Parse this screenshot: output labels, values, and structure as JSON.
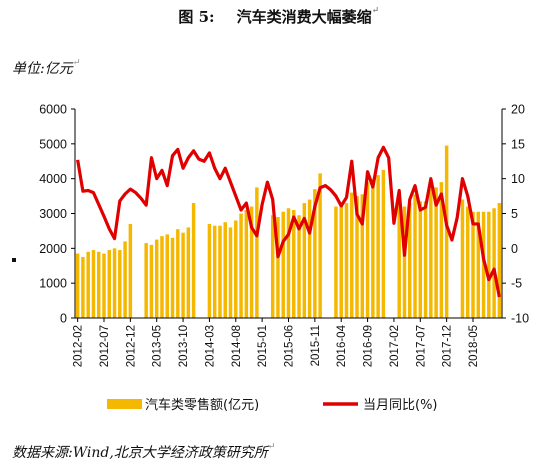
{
  "header": {
    "fig_no": "图 5:",
    "title": "汽车类消费大幅萎缩"
  },
  "unit_label": "单位:亿元",
  "source": "数据来源:Wind,北京大学经济政策研究所",
  "colors": {
    "bar": "#F5B800",
    "line": "#E00000",
    "axis": "#000000"
  },
  "chart_data": {
    "type": "bar",
    "title": "汽车类消费大幅萎缩",
    "y_left": {
      "min": 0,
      "max": 6000,
      "ticks": [
        "0",
        "1000",
        "2000",
        "3000",
        "4000",
        "5000",
        "6000"
      ]
    },
    "y_right": {
      "min": -10,
      "max": 20,
      "ticks": [
        "-10",
        "-5",
        "0",
        "5",
        "10",
        "15",
        "20"
      ]
    },
    "x_tick_labels": [
      "2012-02",
      "2012-07",
      "2012-12",
      "2013-05",
      "2013-10",
      "2014-03",
      "2014-08",
      "2015-01",
      "2015-06",
      "2015-11",
      "2016-04",
      "2016-09",
      "2017-02",
      "2017-07",
      "2017-12",
      "2018-05"
    ],
    "x_tick_step": 5,
    "categories": [
      "2012-02",
      "2012-03",
      "2012-04",
      "2012-05",
      "2012-06",
      "2012-07",
      "2012-08",
      "2012-09",
      "2012-10",
      "2012-11",
      "2012-12",
      "2013-01",
      "2013-02",
      "2013-03",
      "2013-04",
      "2013-05",
      "2013-06",
      "2013-07",
      "2013-08",
      "2013-09",
      "2013-10",
      "2013-11",
      "2013-12",
      "2014-01",
      "2014-02",
      "2014-03",
      "2014-04",
      "2014-05",
      "2014-06",
      "2014-07",
      "2014-08",
      "2014-09",
      "2014-10",
      "2014-11",
      "2014-12",
      "2015-01",
      "2015-02",
      "2015-03",
      "2015-04",
      "2015-05",
      "2015-06",
      "2015-07",
      "2015-08",
      "2015-09",
      "2015-10",
      "2015-11",
      "2015-12",
      "2016-01",
      "2016-02",
      "2016-03",
      "2016-04",
      "2016-05",
      "2016-06",
      "2016-07",
      "2016-08",
      "2016-09",
      "2016-10",
      "2016-11",
      "2016-12",
      "2017-01",
      "2017-02",
      "2017-03",
      "2017-04",
      "2017-05",
      "2017-06",
      "2017-07",
      "2017-08",
      "2017-09",
      "2017-10",
      "2017-11",
      "2017-12",
      "2018-01",
      "2018-02",
      "2018-03",
      "2018-04",
      "2018-05",
      "2018-06",
      "2018-07",
      "2018-08",
      "2018-09",
      "2018-10"
    ],
    "series": [
      {
        "name": "汽车类零售额(亿元)",
        "type": "bar",
        "axis": "left",
        "values": [
          1850,
          1750,
          1900,
          1950,
          1900,
          1850,
          1950,
          2000,
          1950,
          2200,
          2700,
          null,
          null,
          2150,
          2100,
          2250,
          2350,
          2400,
          2300,
          2550,
          2450,
          2600,
          3300,
          null,
          null,
          2700,
          2650,
          2650,
          2750,
          2600,
          2800,
          3000,
          3100,
          3200,
          3750,
          null,
          null,
          2950,
          2900,
          3050,
          3150,
          3100,
          2950,
          3300,
          3400,
          3700,
          4150,
          null,
          null,
          3200,
          3250,
          3300,
          3600,
          3500,
          3550,
          3900,
          4000,
          4100,
          4250,
          null,
          null,
          3350,
          3200,
          3300,
          3550,
          3350,
          3350,
          3700,
          3750,
          3900,
          4950,
          null,
          null,
          3400,
          3200,
          3050,
          3050,
          3050,
          3050,
          3150,
          3300
        ]
      },
      {
        "name": "当月同比(%)",
        "type": "line",
        "axis": "right",
        "values": [
          12.7,
          8.2,
          8.3,
          8.0,
          6.3,
          4.6,
          2.8,
          1.4,
          6.8,
          7.8,
          8.5,
          8.0,
          7.2,
          6.2,
          13.0,
          10.0,
          11.2,
          9.0,
          13.3,
          14.2,
          11.5,
          13.0,
          14.0,
          12.8,
          12.5,
          13.7,
          11.5,
          10.0,
          11.5,
          9.5,
          7.5,
          5.5,
          6.5,
          3.0,
          1.8,
          6.3,
          9.5,
          7.0,
          -1.2,
          1.0,
          2.0,
          4.5,
          2.8,
          4.3,
          2.2,
          6.0,
          8.7,
          9.0,
          8.4,
          7.5,
          6.1,
          7.3,
          12.5,
          4.9,
          3.5,
          11.0,
          8.8,
          13.0,
          14.5,
          13.0,
          3.6,
          8.3,
          -1.0,
          7.0,
          9.0,
          5.5,
          5.9,
          10.0,
          6.2,
          7.8,
          3.3,
          1.2,
          4.4,
          10.0,
          7.5,
          3.5,
          3.5,
          -1.5,
          -4.5,
          -3.0,
          -7.0
        ]
      }
    ],
    "legend": {
      "position": "bottom"
    },
    "grid": false
  }
}
